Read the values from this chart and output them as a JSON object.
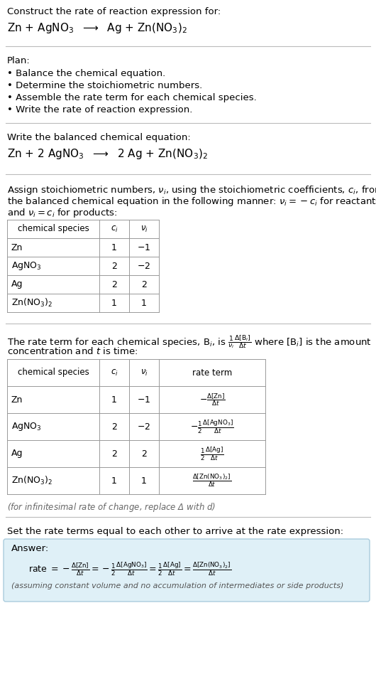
{
  "bg_color": "#ffffff",
  "text_color": "#000000",
  "light_blue_bg": "#dff0f7",
  "border_blue": "#aaccdd",
  "section1_title": "Construct the rate of reaction expression for:",
  "section1_eq": "Zn + AgNO$_3$  $\\longrightarrow$  Ag + Zn(NO$_3$)$_2$",
  "section2_title": "Plan:",
  "section2_bullets": [
    "Balance the chemical equation.",
    "Determine the stoichiometric numbers.",
    "Assemble the rate term for each chemical species.",
    "Write the rate of reaction expression."
  ],
  "section3_title": "Write the balanced chemical equation:",
  "section3_eq": "Zn + 2 AgNO$_3$  $\\longrightarrow$  2 Ag + Zn(NO$_3$)$_2$",
  "section4_line1": "Assign stoichiometric numbers, $\\nu_i$, using the stoichiometric coefficients, $c_i$, from",
  "section4_line2": "the balanced chemical equation in the following manner: $\\nu_i = -c_i$ for reactants",
  "section4_line3": "and $\\nu_i = c_i$ for products:",
  "table1_headers": [
    "chemical species",
    "$c_i$",
    "$\\nu_i$"
  ],
  "table1_rows": [
    [
      "Zn",
      "1",
      "$-1$"
    ],
    [
      "AgNO$_3$",
      "2",
      "$-2$"
    ],
    [
      "Ag",
      "2",
      "2"
    ],
    [
      "Zn(NO$_3$)$_2$",
      "1",
      "1"
    ]
  ],
  "section5_line1": "The rate term for each chemical species, B$_i$, is $\\frac{1}{\\nu_i}\\frac{\\Delta[\\mathrm{B}_i]}{\\Delta t}$ where [B$_i$] is the amount",
  "section5_line2": "concentration and $t$ is time:",
  "table2_headers": [
    "chemical species",
    "$c_i$",
    "$\\nu_i$",
    "rate term"
  ],
  "table2_rows": [
    [
      "Zn",
      "1",
      "$-1$",
      "$-\\frac{\\Delta[\\mathrm{Zn}]}{\\Delta t}$"
    ],
    [
      "AgNO$_3$",
      "2",
      "$-2$",
      "$-\\frac{1}{2}\\frac{\\Delta[\\mathrm{AgNO_3}]}{\\Delta t}$"
    ],
    [
      "Ag",
      "2",
      "2",
      "$\\frac{1}{2}\\frac{\\Delta[\\mathrm{Ag}]}{\\Delta t}$"
    ],
    [
      "Zn(NO$_3$)$_2$",
      "1",
      "1",
      "$\\frac{\\Delta[\\mathrm{Zn(NO_3)_2}]}{\\Delta t}$"
    ]
  ],
  "section5_note": "(for infinitesimal rate of change, replace Δ with $d$)",
  "section6_title": "Set the rate terms equal to each other to arrive at the rate expression:",
  "answer_label": "Answer:",
  "answer_line1": "rate $= -\\frac{\\Delta[\\mathrm{Zn}]}{\\Delta t} = -\\frac{1}{2}\\frac{\\Delta[\\mathrm{AgNO_3}]}{\\Delta t} = \\frac{1}{2}\\frac{\\Delta[\\mathrm{Ag}]}{\\Delta t} = \\frac{\\Delta[\\mathrm{Zn(NO_3)_2}]}{\\Delta t}$",
  "answer_note": "(assuming constant volume and no accumulation of intermediates or side products)"
}
